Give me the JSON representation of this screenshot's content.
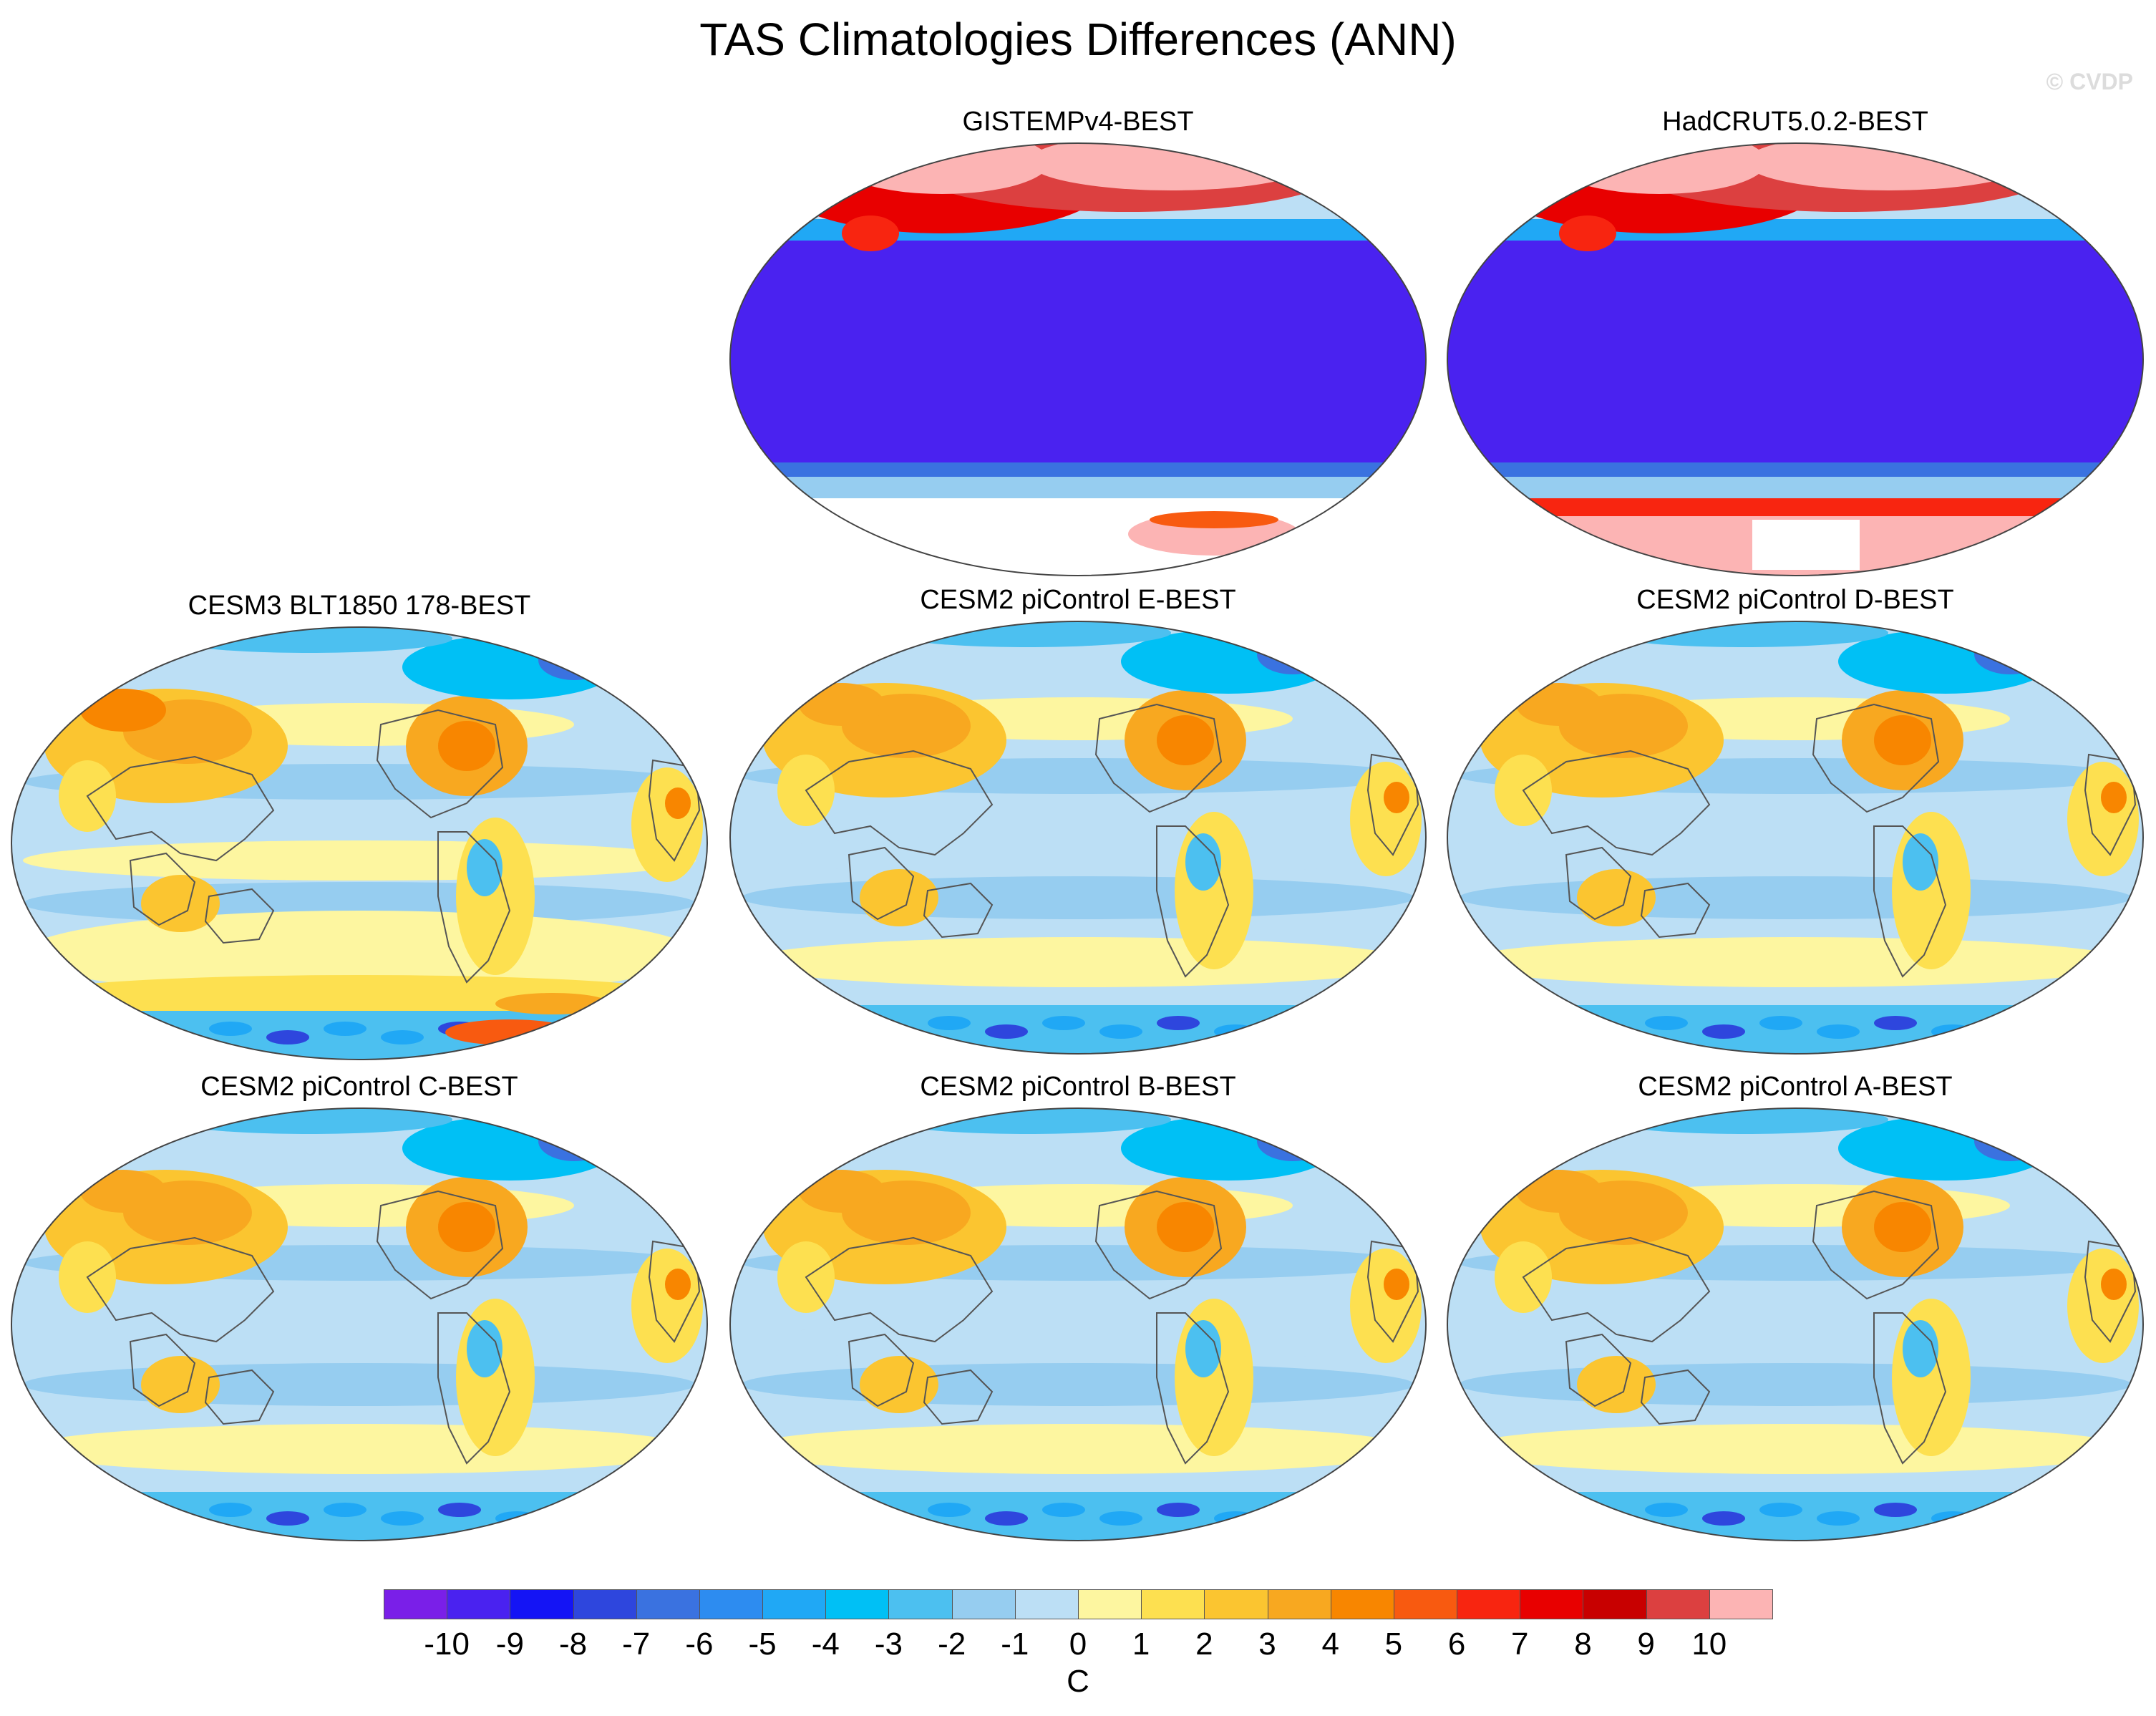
{
  "title": "TAS Climatologies Differences (ANN)",
  "watermark": "© CVDP",
  "panels": [
    {
      "label": "GISTEMPv4-BEST",
      "style": "obs-gis"
    },
    {
      "label": "HadCRUT5.0.2-BEST",
      "style": "obs-had"
    },
    {
      "label": "CESM3 BLT1850 178-BEST",
      "style": "model-warm"
    },
    {
      "label": "CESM2 piControl E-BEST",
      "style": "model"
    },
    {
      "label": "CESM2 piControl D-BEST",
      "style": "model"
    },
    {
      "label": "CESM2 piControl C-BEST",
      "style": "model"
    },
    {
      "label": "CESM2 piControl B-BEST",
      "style": "model"
    },
    {
      "label": "CESM2 piControl A-BEST",
      "style": "model"
    }
  ],
  "colorbar": {
    "unit": "C",
    "labels": [
      "-10",
      "-9",
      "-8",
      "-7",
      "-6",
      "-5",
      "-4",
      "-3",
      "-2",
      "-1",
      "0",
      "1",
      "2",
      "3",
      "4",
      "5",
      "6",
      "7",
      "8",
      "9",
      "10"
    ],
    "colors": [
      "#7a1fe8",
      "#4a22f0",
      "#1414f5",
      "#2e46dd",
      "#3a72e0",
      "#2d8cf0",
      "#20a8f5",
      "#00c0f5",
      "#4cc0f0",
      "#96cdf0",
      "#bcdff5",
      "#fdf6a0",
      "#fde050",
      "#fbc530",
      "#f8a820",
      "#f88600",
      "#f85a10",
      "#f82510",
      "#e80000",
      "#c80000",
      "#dc4040",
      "#fcb4b4"
    ]
  }
}
